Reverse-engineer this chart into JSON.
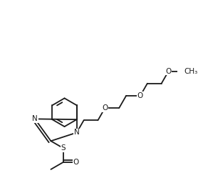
{
  "bg_color": "#ffffff",
  "line_color": "#1a1a1a",
  "line_width": 1.3,
  "fig_width": 2.78,
  "fig_height": 2.42,
  "dpi": 100,
  "xlim": [
    -2.8,
    3.2
  ],
  "ylim": [
    -3.2,
    3.0
  ]
}
